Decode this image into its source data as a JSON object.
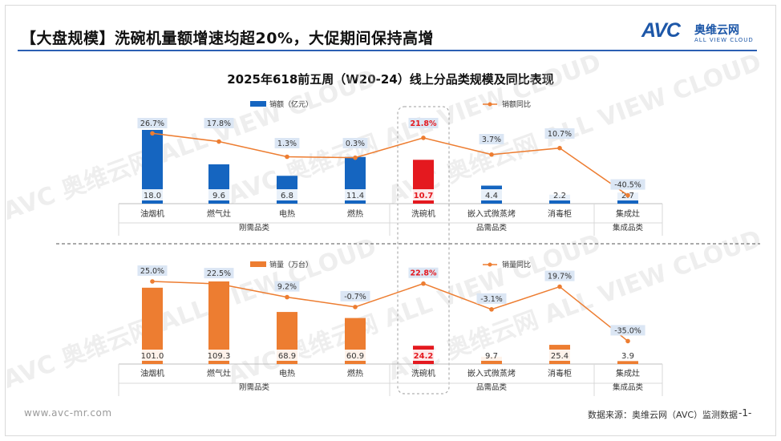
{
  "header": {
    "title": "【大盘规模】洗碗机量额增速均超20%，大促期间保持高增",
    "logo_mark": "AVC",
    "logo_cn": "奥维云网",
    "logo_en": "ALL VIEW CLOUD"
  },
  "chart_title": "2025年618前五周（W20-24）线上分品类规模及同比表现",
  "watermark": "AVC 奥维云网 ALL VIEW CLOUD",
  "colors": {
    "sales_bar": "#1565c0",
    "volume_bar": "#ed7d31",
    "highlight_bar": "#e4191f",
    "yoy_line": "#ed7d31"
  },
  "chart_data": [
    {
      "type": "bar",
      "categories": [
        "油烟机",
        "燃气灶",
        "电热",
        "燃热",
        "洗碗机",
        "嵌入式微蒸烤",
        "消毒柜",
        "集成灶"
      ],
      "groups": [
        {
          "label": "刚需品类",
          "categories": [
            "油烟机",
            "燃气灶",
            "电热",
            "燃热"
          ]
        },
        {
          "label": "品需品类",
          "categories": [
            "洗碗机",
            "嵌入式微蒸烤",
            "消毒柜"
          ]
        },
        {
          "label": "集成品类",
          "categories": [
            "集成灶"
          ]
        }
      ],
      "series": [
        {
          "name": "销额（亿元）",
          "kind": "bar",
          "values": [
            18.0,
            9.6,
            6.8,
            11.4,
            10.7,
            4.4,
            2.2,
            2.7
          ],
          "labels": [
            "18.0",
            "9.6",
            "6.8",
            "11.4",
            "10.7",
            "4.4",
            "2.2",
            "2.7"
          ]
        },
        {
          "name": "销额同比",
          "kind": "line",
          "values": [
            26.7,
            17.8,
            1.3,
            0.3,
            21.8,
            3.7,
            10.7,
            -40.5
          ],
          "labels": [
            "26.7%",
            "17.8%",
            "1.3%",
            "0.3%",
            "21.8%",
            "3.7%",
            "10.7%",
            "-40.5%"
          ]
        }
      ],
      "highlight": "洗碗机"
    },
    {
      "type": "bar",
      "categories": [
        "油烟机",
        "燃气灶",
        "电热",
        "燃热",
        "洗碗机",
        "嵌入式微蒸烤",
        "消毒柜",
        "集成灶"
      ],
      "groups": [
        {
          "label": "刚需品类",
          "categories": [
            "油烟机",
            "燃气灶",
            "电热",
            "燃热"
          ]
        },
        {
          "label": "品需品类",
          "categories": [
            "洗碗机",
            "嵌入式微蒸烤",
            "消毒柜"
          ]
        },
        {
          "label": "集成品类",
          "categories": [
            "集成灶"
          ]
        }
      ],
      "series": [
        {
          "name": "销量（万台）",
          "kind": "bar",
          "values": [
            101.0,
            109.3,
            68.9,
            60.9,
            24.2,
            9.7,
            25.4,
            3.9
          ],
          "labels": [
            "101.0",
            "109.3",
            "68.9",
            "60.9",
            "24.2",
            "9.7",
            "25.4",
            "3.9"
          ]
        },
        {
          "name": "销量同比",
          "kind": "line",
          "values": [
            25.0,
            22.5,
            9.2,
            -0.7,
            22.8,
            -3.1,
            19.7,
            -35.0
          ],
          "labels": [
            "25.0%",
            "22.5%",
            "9.2%",
            "-0.7%",
            "22.8%",
            "-3.1%",
            "19.7%",
            "-35.0%"
          ]
        }
      ],
      "highlight": "洗碗机"
    }
  ],
  "footer": {
    "url": "www.avc-mr.com",
    "source": "数据来源：奥维云网（AVC）监测数据",
    "page": "-1-"
  }
}
